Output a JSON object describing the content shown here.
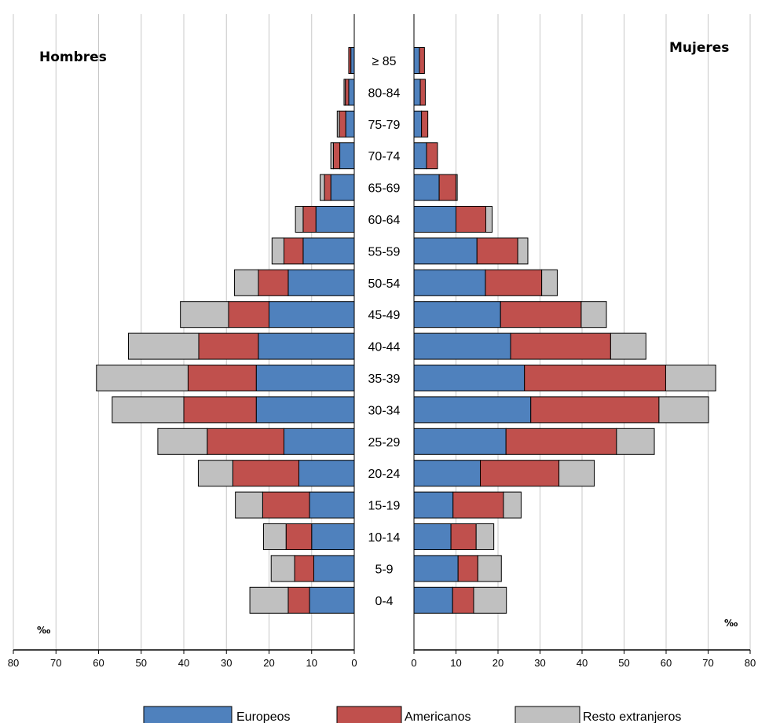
{
  "chart_data": {
    "type": "bar",
    "orientation": "horizontal-pyramid",
    "left_panel_title": "Hombres",
    "right_panel_title": "Mujeres",
    "unit_left": "‰",
    "unit_right": "‰",
    "age_groups": [
      "≥ 85",
      "80-84",
      "75-79",
      "70-74",
      "65-69",
      "60-64",
      "55-59",
      "50-54",
      "45-49",
      "40-44",
      "35-39",
      "30-34",
      "25-29",
      "20-24",
      "15-19",
      "10-14",
      "5-9",
      "0-4"
    ],
    "xlim": [
      0,
      80
    ],
    "x_ticks": [
      80,
      70,
      60,
      50,
      40,
      30,
      20,
      10,
      0
    ],
    "grid": true,
    "legend_position": "bottom",
    "colors": {
      "Europeos": "#4f81bd",
      "Americanos": "#c0504d",
      "Resto extranjeros": "#c0c0c0"
    },
    "series": [
      {
        "name": "Europeos",
        "men": [
          0.8,
          1.3,
          2.0,
          3.4,
          5.5,
          9.0,
          12.0,
          15.5,
          20.0,
          22.5,
          23.0,
          23.0,
          16.5,
          13.0,
          10.5,
          10.0,
          9.5,
          10.5
        ],
        "women": [
          1.3,
          1.5,
          1.8,
          3.0,
          6.0,
          10.0,
          15.0,
          17.0,
          20.6,
          23.0,
          26.3,
          27.8,
          21.9,
          15.8,
          9.3,
          8.8,
          10.5,
          9.2
        ]
      },
      {
        "name": "Americanos",
        "men": [
          0.5,
          0.8,
          1.5,
          1.5,
          1.5,
          3.0,
          4.5,
          7.0,
          9.5,
          14.0,
          16.0,
          17.0,
          18.0,
          15.5,
          11.0,
          6.0,
          4.5,
          5.0
        ],
        "women": [
          1.2,
          1.2,
          1.5,
          2.6,
          4.0,
          7.1,
          9.7,
          13.4,
          19.2,
          23.8,
          33.6,
          30.5,
          26.3,
          18.7,
          12.0,
          6.0,
          4.7,
          5.0
        ]
      },
      {
        "name": "Resto extranjeros",
        "men": [
          0.0,
          0.3,
          0.5,
          0.6,
          1.0,
          1.8,
          2.8,
          5.6,
          11.3,
          16.5,
          21.5,
          16.8,
          11.6,
          8.1,
          6.4,
          5.3,
          5.5,
          9.0
        ],
        "women": [
          0.0,
          0.0,
          0.0,
          0.0,
          0.3,
          1.5,
          2.4,
          3.7,
          6.0,
          8.4,
          11.9,
          11.8,
          9.0,
          8.4,
          4.2,
          4.2,
          5.6,
          7.8
        ]
      }
    ]
  }
}
